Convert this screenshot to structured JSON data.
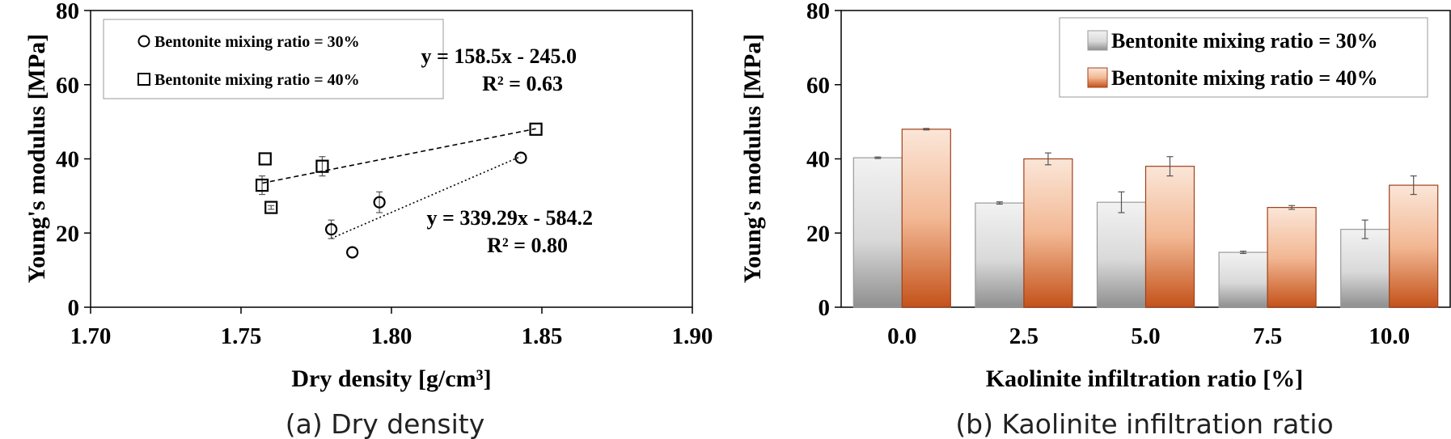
{
  "chart_data": [
    {
      "type": "scatter",
      "caption": "(a) Dry density",
      "xlabel": "Dry density [g/cm³]",
      "ylabel": "Young's modulus [MPa]",
      "xlim": [
        1.7,
        1.9
      ],
      "ylim": [
        0,
        80
      ],
      "xticks": [
        "1.70",
        "1.75",
        "1.80",
        "1.85",
        "1.90"
      ],
      "yticks": [
        "0",
        "20",
        "40",
        "60",
        "80"
      ],
      "legend_position": "top-left",
      "series": [
        {
          "name": "Bentonite mixing ratio = 30%",
          "marker": "circle",
          "points": [
            [
              1.78,
              21.0
            ],
            [
              1.787,
              14.8
            ],
            [
              1.796,
              28.3
            ],
            [
              1.843,
              40.3
            ]
          ],
          "errors": [
            2.5,
            0.3,
            2.8,
            0.2
          ],
          "fit": {
            "x": [
              1.78,
              1.843
            ],
            "line_style": "dotted"
          },
          "equation": "y = 339.29x - 584.2",
          "r2": "R² = 0.80"
        },
        {
          "name": "Bentonite mixing ratio = 40%",
          "marker": "square",
          "points": [
            [
              1.757,
              32.9
            ],
            [
              1.758,
              40.0
            ],
            [
              1.76,
              26.9
            ],
            [
              1.777,
              38.0
            ],
            [
              1.848,
              48.0
            ]
          ],
          "errors": [
            2.5,
            0.2,
            0.5,
            2.6,
            0.2
          ],
          "fit": {
            "x": [
              1.757,
              1.848
            ],
            "line_style": "dashed"
          },
          "equation": "y = 158.5x - 245.0",
          "r2": "R² = 0.63"
        }
      ]
    },
    {
      "type": "bar",
      "caption": "(b) Kaolinite infiltration ratio",
      "xlabel": "Kaolinite infiltration ratio [%]",
      "ylabel": "Young's modulus [MPa]",
      "ylim": [
        0,
        80
      ],
      "yticks": [
        "0",
        "20",
        "40",
        "60",
        "80"
      ],
      "categories": [
        "0.0",
        "2.5",
        "5.0",
        "7.5",
        "10.0"
      ],
      "legend_position": "top-right",
      "series": [
        {
          "name": "Bentonite mixing ratio = 30%",
          "values": [
            40.3,
            28.1,
            28.3,
            14.8,
            21.0
          ],
          "errors": [
            0.2,
            0.3,
            2.8,
            0.3,
            2.5
          ]
        },
        {
          "name": "Bentonite mixing ratio = 40%",
          "values": [
            48.0,
            40.0,
            38.0,
            26.9,
            32.9
          ],
          "errors": [
            0.2,
            1.6,
            2.6,
            0.5,
            2.5
          ]
        }
      ]
    }
  ],
  "colors": {
    "bar_30_top": "#f2f2f2",
    "bar_30_bottom": "#8f8f8f",
    "bar_40_top": "#fbe6d8",
    "bar_40_bottom": "#c4521a",
    "edge_30": "#9a9a9a",
    "edge_40": "#a0401a"
  }
}
